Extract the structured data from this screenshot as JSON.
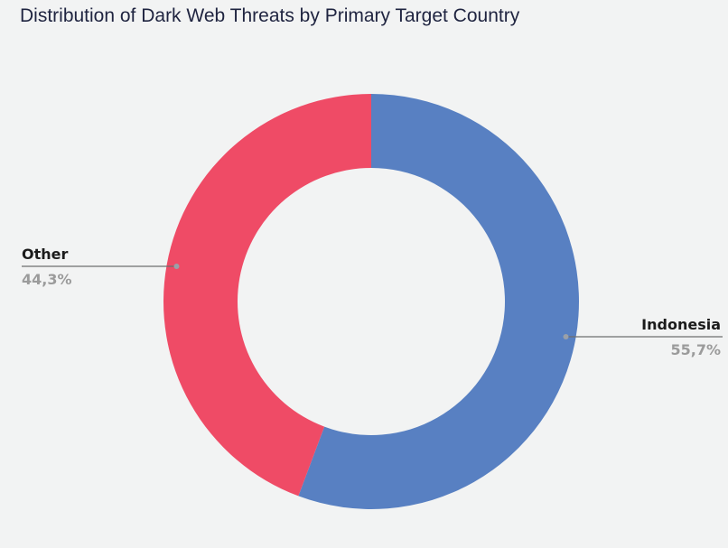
{
  "chart_data": {
    "type": "pie",
    "variant": "donut",
    "title": "Distribution of Dark Web Threats by Primary Target Country",
    "slices": [
      {
        "label": "Indonesia",
        "value": 55.7,
        "display": "55,7%",
        "color": "#5880c2"
      },
      {
        "label": "Other",
        "value": 44.3,
        "display": "44,3%",
        "color": "#ef4b66"
      }
    ],
    "legend": "none"
  },
  "colors": {
    "background": "#f2f3f3",
    "title": "#1f2440",
    "leader_line": "#6e6e6e",
    "label_name": "#1c1c1c",
    "label_value": "#9b9b9b"
  }
}
